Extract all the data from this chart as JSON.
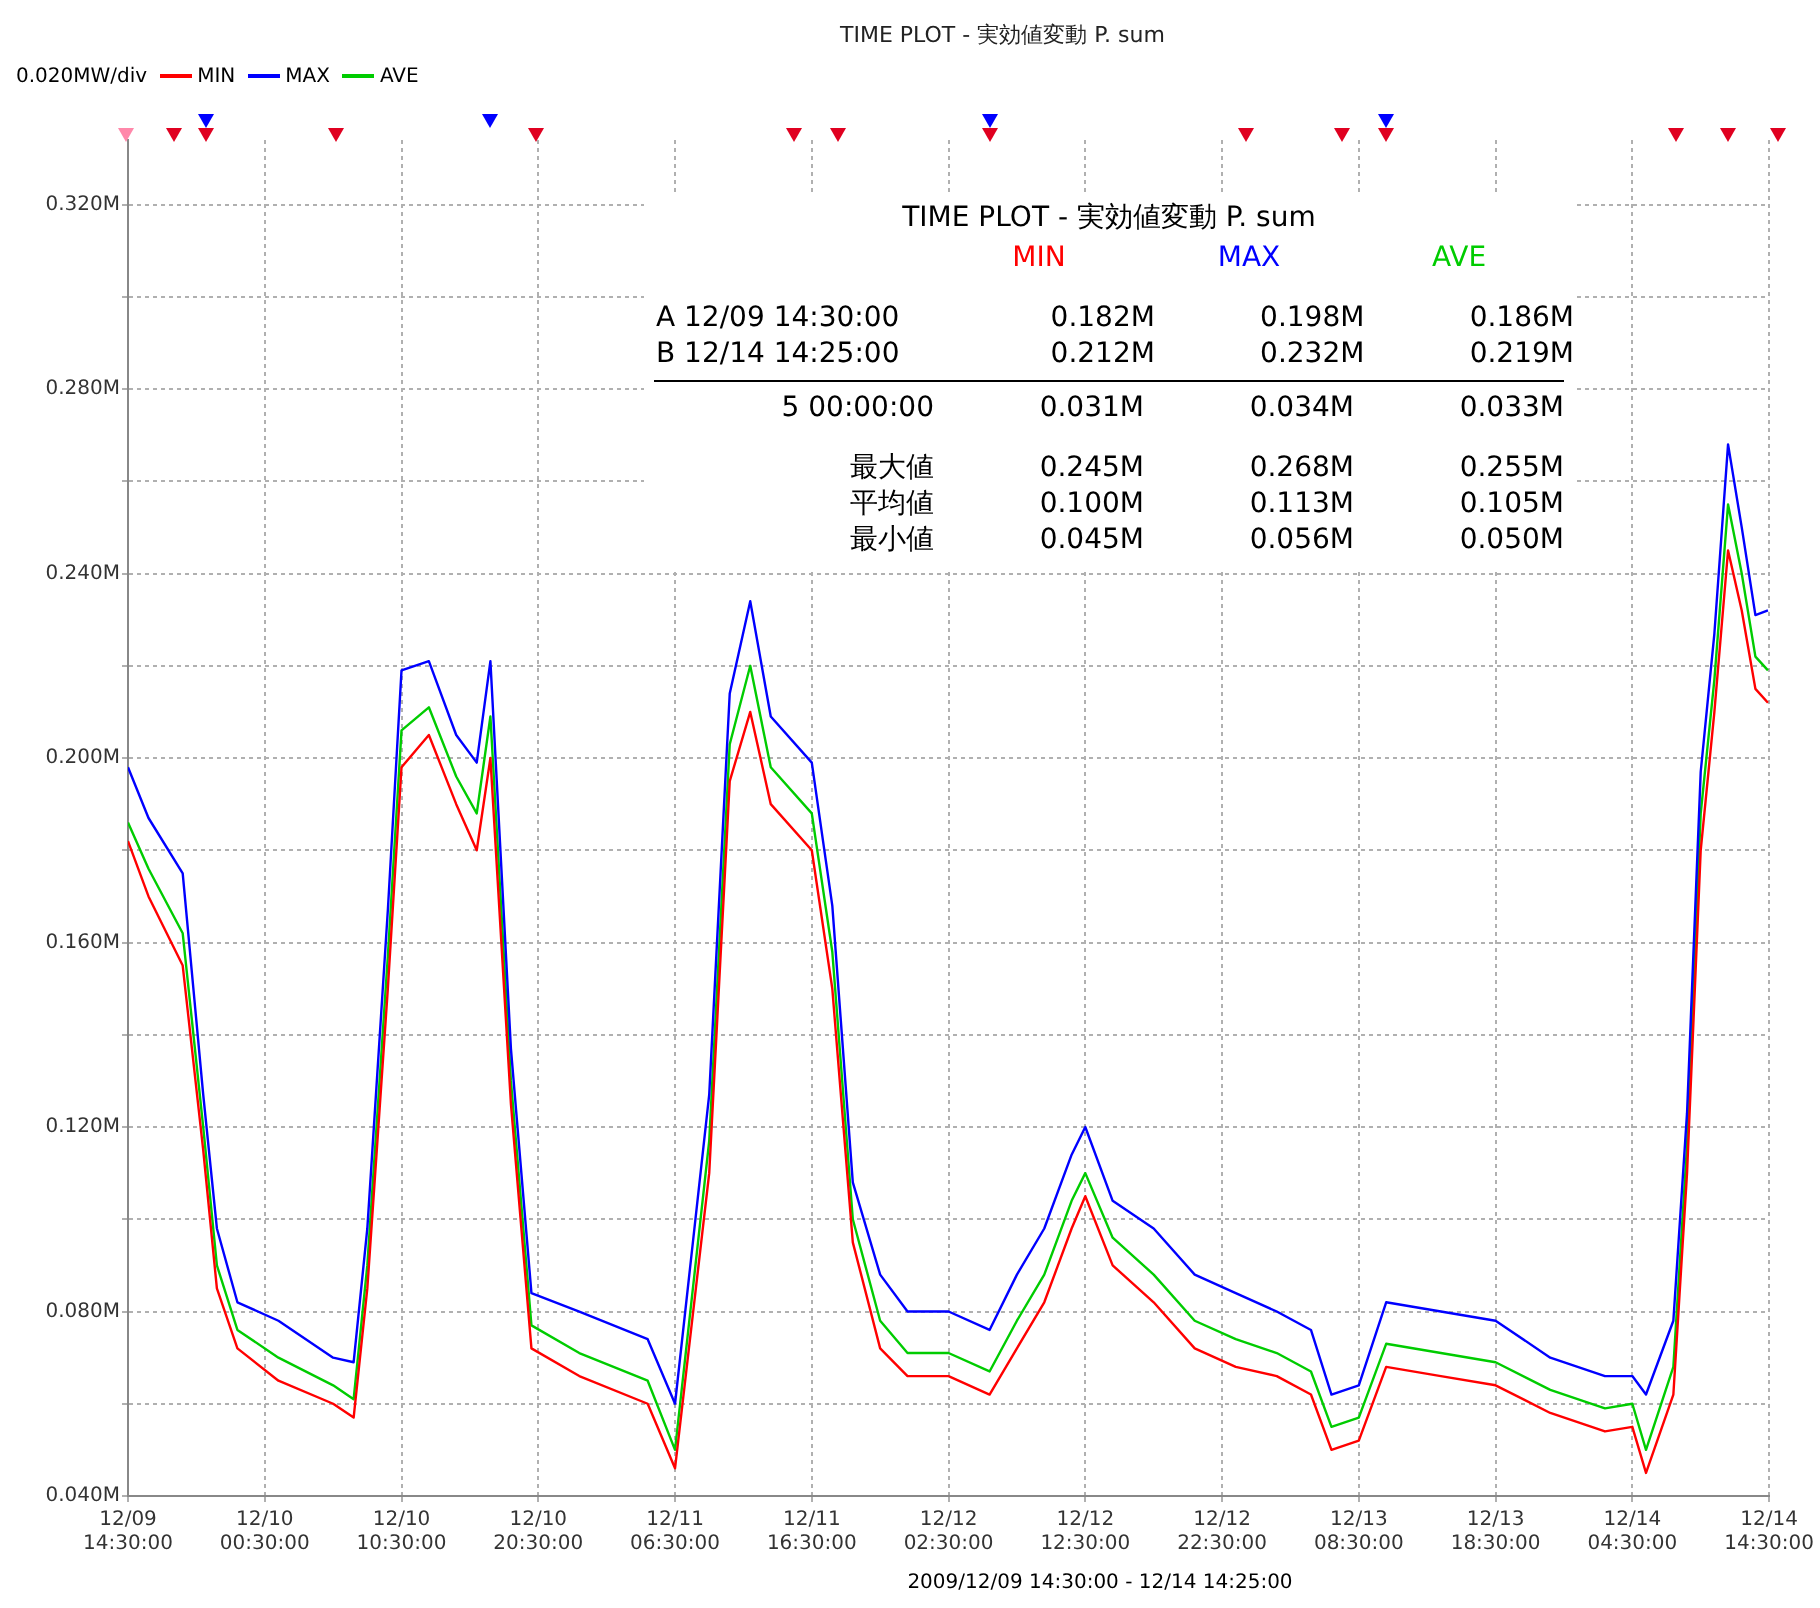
{
  "chart_data": {
    "type": "line",
    "title": "TIME PLOT - 実効値変動  P. sum",
    "xlabel": "2009/12/09 14:30:00 - 12/14 14:25:00",
    "legend_title": "0.020MW/div",
    "legend": "top left",
    "grid": true,
    "line_style": "solid",
    "marker": "none",
    "x": [
      "2009-12-09T14:30",
      "2009-12-09T16:00",
      "2009-12-09T18:30",
      "2009-12-09T20:00",
      "2009-12-09T21:00",
      "2009-12-09T22:30",
      "2009-12-10T01:30",
      "2009-12-10T05:30",
      "2009-12-10T07:00",
      "2009-12-10T08:00",
      "2009-12-10T09:30",
      "2009-12-10T10:30",
      "2009-12-10T12:30",
      "2009-12-10T14:30",
      "2009-12-10T16:00",
      "2009-12-10T17:00",
      "2009-12-10T18:30",
      "2009-12-10T20:00",
      "2009-12-10T23:30",
      "2009-12-11T04:30",
      "2009-12-11T06:30",
      "2009-12-11T09:00",
      "2009-12-11T10:30",
      "2009-12-11T12:00",
      "2009-12-11T13:30",
      "2009-12-11T16:30",
      "2009-12-11T18:00",
      "2009-12-11T19:30",
      "2009-12-11T21:30",
      "2009-12-11T23:30",
      "2009-12-12T02:30",
      "2009-12-12T05:30",
      "2009-12-12T07:30",
      "2009-12-12T09:30",
      "2009-12-12T11:30",
      "2009-12-12T12:30",
      "2009-12-12T14:30",
      "2009-12-12T17:30",
      "2009-12-12T20:30",
      "2009-12-12T23:30",
      "2009-12-13T02:30",
      "2009-12-13T05:00",
      "2009-12-13T06:30",
      "2009-12-13T08:30",
      "2009-12-13T10:30",
      "2009-12-13T14:30",
      "2009-12-13T18:30",
      "2009-12-13T22:30",
      "2009-12-14T02:30",
      "2009-12-14T04:30",
      "2009-12-14T05:30",
      "2009-12-14T07:30",
      "2009-12-14T08:30",
      "2009-12-14T09:30",
      "2009-12-14T10:30",
      "2009-12-14T11:30",
      "2009-12-14T12:30",
      "2009-12-14T13:30",
      "2009-12-14T14:25"
    ],
    "series": [
      {
        "name": "MIN",
        "color": "#ff0000",
        "values": [
          0.182,
          0.17,
          0.155,
          0.115,
          0.085,
          0.072,
          0.065,
          0.06,
          0.057,
          0.085,
          0.15,
          0.198,
          0.205,
          0.19,
          0.18,
          0.2,
          0.125,
          0.072,
          0.066,
          0.06,
          0.046,
          0.11,
          0.195,
          0.21,
          0.19,
          0.18,
          0.15,
          0.095,
          0.072,
          0.066,
          0.066,
          0.062,
          0.072,
          0.082,
          0.098,
          0.105,
          0.09,
          0.082,
          0.072,
          0.068,
          0.066,
          0.062,
          0.05,
          0.052,
          0.068,
          0.066,
          0.064,
          0.058,
          0.054,
          0.055,
          0.045,
          0.062,
          0.11,
          0.18,
          0.21,
          0.245,
          0.232,
          0.215,
          0.212
        ]
      },
      {
        "name": "MAX",
        "color": "#0000ff",
        "values": [
          0.198,
          0.187,
          0.175,
          0.127,
          0.098,
          0.082,
          0.078,
          0.07,
          0.069,
          0.098,
          0.167,
          0.219,
          0.221,
          0.205,
          0.199,
          0.221,
          0.137,
          0.084,
          0.08,
          0.074,
          0.06,
          0.127,
          0.214,
          0.234,
          0.209,
          0.199,
          0.168,
          0.108,
          0.088,
          0.08,
          0.08,
          0.076,
          0.088,
          0.098,
          0.114,
          0.12,
          0.104,
          0.098,
          0.088,
          0.084,
          0.08,
          0.076,
          0.062,
          0.064,
          0.082,
          0.08,
          0.078,
          0.07,
          0.066,
          0.066,
          0.062,
          0.078,
          0.123,
          0.197,
          0.227,
          0.268,
          0.25,
          0.231,
          0.232
        ]
      },
      {
        "name": "AVE",
        "color": "#00cc00",
        "values": [
          0.186,
          0.176,
          0.162,
          0.12,
          0.09,
          0.076,
          0.07,
          0.064,
          0.061,
          0.09,
          0.157,
          0.206,
          0.211,
          0.196,
          0.188,
          0.209,
          0.13,
          0.077,
          0.071,
          0.065,
          0.05,
          0.117,
          0.203,
          0.22,
          0.198,
          0.188,
          0.158,
          0.1,
          0.078,
          0.071,
          0.071,
          0.067,
          0.078,
          0.088,
          0.104,
          0.11,
          0.096,
          0.088,
          0.078,
          0.074,
          0.071,
          0.067,
          0.055,
          0.057,
          0.073,
          0.071,
          0.069,
          0.063,
          0.059,
          0.06,
          0.05,
          0.068,
          0.116,
          0.188,
          0.217,
          0.255,
          0.24,
          0.222,
          0.219
        ]
      }
    ],
    "xlim": [
      "2009-12-09T14:30",
      "2009-12-14T14:30"
    ],
    "xticks": [
      {
        "value": "2009-12-09T14:30",
        "label": "12/09 14:30:00"
      },
      {
        "value": "2009-12-10T00:30",
        "label": "12/10 00:30:00"
      },
      {
        "value": "2009-12-10T10:30",
        "label": "12/10 10:30:00"
      },
      {
        "value": "2009-12-10T20:30",
        "label": "12/10 20:30:00"
      },
      {
        "value": "2009-12-11T06:30",
        "label": "12/11 06:30:00"
      },
      {
        "value": "2009-12-11T16:30",
        "label": "12/11 16:30:00"
      },
      {
        "value": "2009-12-12T02:30",
        "label": "12/12 02:30:00"
      },
      {
        "value": "2009-12-12T12:30",
        "label": "12/12 12:30:00"
      },
      {
        "value": "2009-12-12T22:30",
        "label": "12/12 22:30:00"
      },
      {
        "value": "2009-12-13T08:30",
        "label": "12/13 08:30:00"
      },
      {
        "value": "2009-12-13T18:30",
        "label": "12/13 18:30:00"
      },
      {
        "value": "2009-12-14T04:30",
        "label": "12/14 04:30:00"
      },
      {
        "value": "2009-12-14T14:30",
        "label": "12/14 14:30:00"
      }
    ],
    "ylim": [
      0.04,
      0.334
    ],
    "yticks": [
      {
        "value": 0.04,
        "label": "0.040M"
      },
      {
        "value": 0.06,
        "label": null
      },
      {
        "value": 0.08,
        "label": "0.080M"
      },
      {
        "value": 0.1,
        "label": null
      },
      {
        "value": 0.12,
        "label": "0.120M"
      },
      {
        "value": 0.14,
        "label": null
      },
      {
        "value": 0.16,
        "label": "0.160M"
      },
      {
        "value": 0.18,
        "label": null
      },
      {
        "value": 0.2,
        "label": "0.200M"
      },
      {
        "value": 0.22,
        "label": null
      },
      {
        "value": 0.24,
        "label": "0.240M"
      },
      {
        "value": 0.26,
        "label": null
      },
      {
        "value": 0.28,
        "label": "0.280M"
      },
      {
        "value": 0.3,
        "label": null
      },
      {
        "value": 0.32,
        "label": "0.320M"
      }
    ],
    "annotations": [
      "TIME PLOT - 実効値変動  P. sum",
      "MIN",
      "MAX",
      "AVE",
      "A 12/09 14:30:00",
      "0.182M",
      "0.198M",
      "0.186M",
      "B 12/14 14:25:00",
      "0.212M",
      "0.232M",
      "0.219M",
      "5 00:00:00",
      "0.031M",
      "0.034M",
      "0.033M",
      "最大値",
      "0.245M",
      "0.268M",
      "0.255M",
      "平均値",
      "0.100M",
      "0.113M",
      "0.105M",
      "最小値",
      "0.045M",
      "0.056M",
      "0.050M"
    ]
  }
}
